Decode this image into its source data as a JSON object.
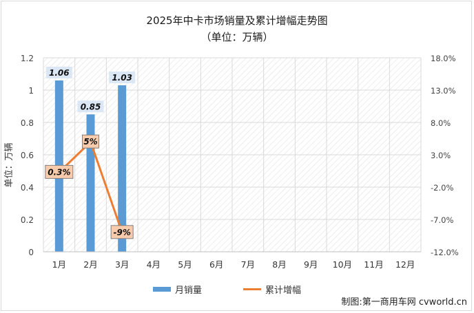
{
  "chart_data": {
    "type": "bar",
    "title": "2025年中卡市场销量及累计增幅走势图",
    "subtitle": "（单位：万辆）",
    "xlabel": "",
    "ylabel": "单位：万辆",
    "categories": [
      "1月",
      "2月",
      "3月",
      "4月",
      "5月",
      "6月",
      "7月",
      "8月",
      "9月",
      "10月",
      "11月",
      "12月"
    ],
    "series": [
      {
        "name": "月销量",
        "type": "bar",
        "axis": "left",
        "color": "#5b9bd5",
        "values": [
          1.06,
          0.85,
          1.03,
          null,
          null,
          null,
          null,
          null,
          null,
          null,
          null,
          null
        ],
        "labels": [
          "1.06",
          "0.85",
          "1.03"
        ]
      },
      {
        "name": "累计增幅",
        "type": "line",
        "axis": "right",
        "color": "#ed7d31",
        "values": [
          0.3,
          5,
          -9,
          null,
          null,
          null,
          null,
          null,
          null,
          null,
          null,
          null
        ],
        "labels": [
          "0.3%",
          "5%",
          "-9%"
        ]
      }
    ],
    "ylim": [
      0,
      1.2
    ],
    "y_ticks": [
      "0",
      "0.2",
      "0.4",
      "0.6",
      "0.8",
      "1",
      "1.2"
    ],
    "y2lim": [
      -12,
      18
    ],
    "y2_ticks": [
      "-12.0%",
      "-7.0%",
      "-2.0%",
      "3.0%",
      "8.0%",
      "13.0%",
      "18.0%"
    ],
    "grid": true,
    "legend_position": "bottom"
  },
  "legend": {
    "bar_label": "月销量",
    "line_label": "累计增幅"
  },
  "source": "制图:第一商用车网 cvworld.cn"
}
